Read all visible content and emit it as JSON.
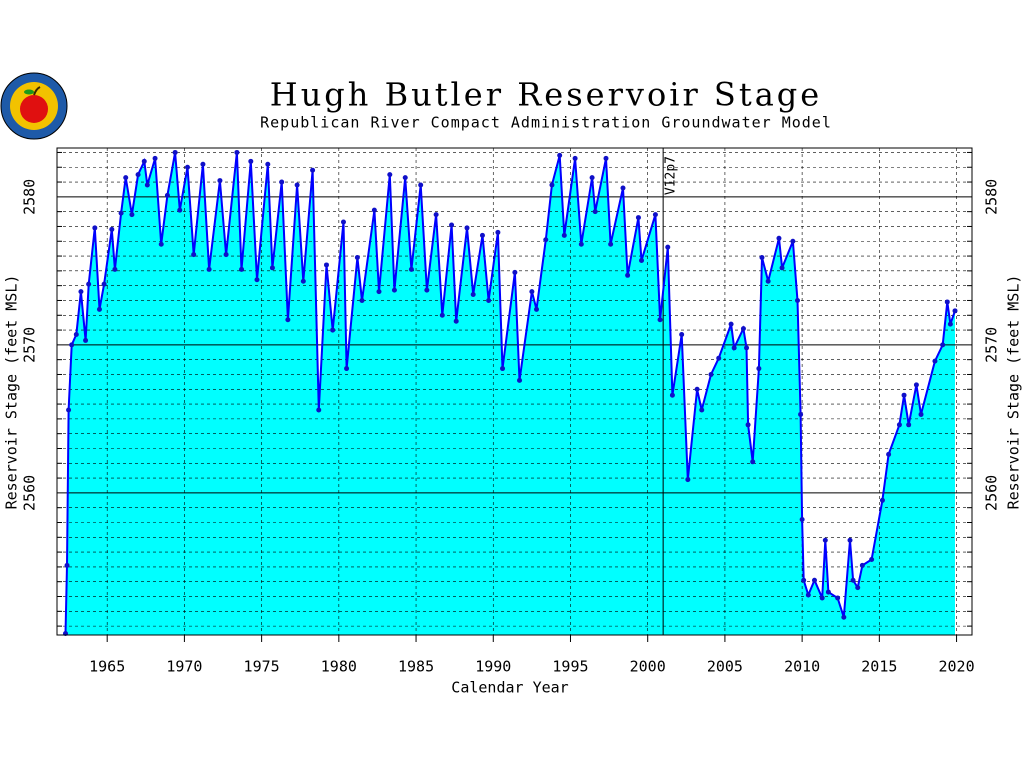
{
  "chart_data": {
    "type": "area",
    "title": "Hugh Butler Reservoir Stage",
    "subtitle": "Republican River Compact Administration Groundwater Model",
    "x_label": "Calendar Year",
    "y_label": "Reservoir Stage (feet MSL)",
    "annotations": [
      {
        "text": "V12p7",
        "x": 2001.0
      }
    ],
    "color": "#0000ff",
    "fill_color": "#00ffff",
    "marker_color": "#1010c8",
    "xlim": [
      1961.75,
      2021.0
    ],
    "xticks": [
      1965,
      1970,
      1975,
      1980,
      1985,
      1990,
      1995,
      2000,
      2005,
      2010,
      2015,
      2020
    ],
    "ylim": [
      2550.4,
      2583.3
    ],
    "yticks": [
      2560,
      2570,
      2580
    ],
    "yminor_ticks": [
      2551,
      2552,
      2553,
      2554,
      2555,
      2556,
      2557,
      2558,
      2559,
      2561,
      2562,
      2563,
      2564,
      2565,
      2566,
      2567,
      2568,
      2569,
      2571,
      2572,
      2573,
      2574,
      2575,
      2576,
      2577,
      2578,
      2579,
      2581,
      2582,
      2583
    ],
    "grid": true,
    "x": [
      1962.3,
      1962.4,
      1962.5,
      1962.7,
      1963.0,
      1963.3,
      1963.6,
      1963.8,
      1964.2,
      1964.5,
      1964.8,
      1965.3,
      1965.5,
      1965.9,
      1966.2,
      1966.6,
      1967.0,
      1967.4,
      1967.6,
      1968.1,
      1968.5,
      1968.9,
      1969.4,
      1969.7,
      1970.2,
      1970.6,
      1971.2,
      1971.6,
      1972.3,
      1972.7,
      1973.4,
      1973.7,
      1974.3,
      1974.7,
      1975.4,
      1975.7,
      1976.3,
      1976.7,
      1977.3,
      1977.7,
      1978.3,
      1978.7,
      1979.2,
      1979.6,
      1980.3,
      1980.5,
      1981.2,
      1981.5,
      1982.3,
      1982.6,
      1983.3,
      1983.6,
      1984.3,
      1984.7,
      1985.3,
      1985.7,
      1986.3,
      1986.7,
      1987.3,
      1987.6,
      1988.3,
      1988.7,
      1989.3,
      1989.7,
      1990.3,
      1990.6,
      1991.4,
      1991.7,
      1992.5,
      1992.8,
      1993.4,
      1993.8,
      1994.3,
      1994.6,
      1995.3,
      1995.7,
      1996.4,
      1996.6,
      1997.3,
      1997.6,
      1998.4,
      1998.7,
      1999.4,
      1999.6,
      2000.5,
      2000.8,
      2001.3,
      2001.6,
      2002.2,
      2002.6,
      2003.2,
      2003.5,
      2004.1,
      2004.6,
      2005.4,
      2005.6,
      2006.2,
      2006.4,
      2006.5,
      2006.8,
      2007.2,
      2007.4,
      2007.8,
      2008.5,
      2008.7,
      2009.4,
      2009.7,
      2009.9,
      2010.0,
      2010.1,
      2010.4,
      2010.8,
      2011.3,
      2011.5,
      2011.7,
      2012.3,
      2012.7,
      2013.1,
      2013.3,
      2013.6,
      2013.9,
      2014.5,
      2015.2,
      2015.6,
      2016.3,
      2016.6,
      2016.9,
      2017.4,
      2017.7,
      2018.6,
      2019.1,
      2019.4,
      2019.6,
      2019.9
    ],
    "values": [
      2550.5,
      2555.1,
      2565.6,
      2570.0,
      2570.7,
      2573.6,
      2570.3,
      2574.1,
      2577.9,
      2572.4,
      2574.1,
      2577.8,
      2575.1,
      2578.9,
      2581.3,
      2578.8,
      2581.5,
      2582.4,
      2580.8,
      2582.6,
      2576.8,
      2580.1,
      2583.0,
      2579.1,
      2582.0,
      2576.1,
      2582.2,
      2575.1,
      2581.1,
      2576.1,
      2583.0,
      2575.1,
      2582.4,
      2574.4,
      2582.2,
      2575.2,
      2581.0,
      2571.7,
      2580.8,
      2574.3,
      2581.8,
      2565.6,
      2575.4,
      2571.0,
      2578.3,
      2568.4,
      2575.9,
      2573.0,
      2579.1,
      2573.6,
      2581.5,
      2573.7,
      2581.3,
      2575.1,
      2580.8,
      2573.7,
      2578.8,
      2572.0,
      2578.1,
      2571.6,
      2577.9,
      2573.4,
      2577.4,
      2573.0,
      2577.6,
      2568.4,
      2574.9,
      2567.6,
      2573.6,
      2572.4,
      2577.1,
      2580.8,
      2582.8,
      2577.4,
      2582.6,
      2576.8,
      2581.3,
      2579.0,
      2582.6,
      2576.8,
      2580.6,
      2574.7,
      2578.6,
      2575.7,
      2578.8,
      2571.7,
      2576.6,
      2566.6,
      2570.7,
      2560.9,
      2567.0,
      2565.6,
      2568.0,
      2569.1,
      2571.4,
      2569.8,
      2571.1,
      2569.8,
      2564.6,
      2562.1,
      2568.4,
      2575.9,
      2574.3,
      2577.2,
      2575.2,
      2577.0,
      2573.0,
      2565.3,
      2558.2,
      2554.1,
      2553.1,
      2554.1,
      2552.9,
      2556.8,
      2553.3,
      2552.9,
      2551.6,
      2556.8,
      2554.1,
      2553.6,
      2555.1,
      2555.5,
      2559.5,
      2562.6,
      2564.6,
      2566.6,
      2564.6,
      2567.3,
      2565.3,
      2568.9,
      2570.0,
      2572.9,
      2571.4,
      2572.3
    ]
  }
}
